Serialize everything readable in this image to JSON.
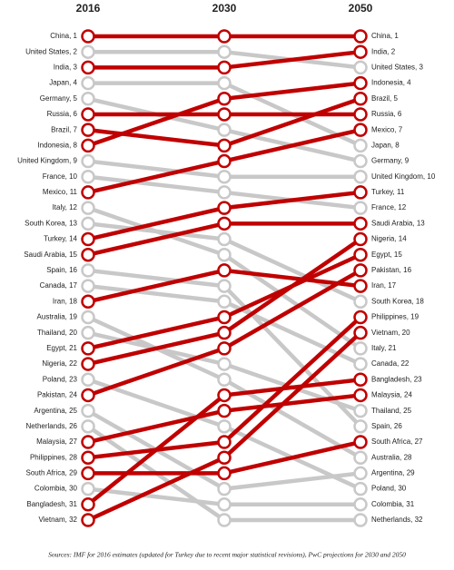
{
  "chart_data": {
    "type": "slope",
    "categories": [
      "2016",
      "2030",
      "2050"
    ],
    "ylim": [
      1,
      32
    ],
    "source": "Sources: IMF for 2016 estimates (updated for Turkey due to recent major statistical revisions), PwC projections for 2030 and 2050",
    "series": [
      {
        "color": "#c00000",
        "values": [
          1,
          1,
          1
        ],
        "value_labels": [
          "China, 1",
          null,
          "China, 1"
        ]
      },
      {
        "color": "#c8c8c8",
        "values": [
          2,
          2,
          3
        ],
        "value_labels": [
          "United States, 2",
          null,
          "United States, 3"
        ]
      },
      {
        "color": "#c00000",
        "values": [
          3,
          3,
          2
        ],
        "value_labels": [
          "India, 3",
          null,
          "India, 2"
        ]
      },
      {
        "color": "#c8c8c8",
        "values": [
          4,
          4,
          8
        ],
        "value_labels": [
          "Japan, 4",
          null,
          "Japan, 8"
        ]
      },
      {
        "color": "#c8c8c8",
        "values": [
          5,
          7,
          9
        ],
        "value_labels": [
          "Germany, 5",
          null,
          "Germany, 9"
        ]
      },
      {
        "color": "#c00000",
        "values": [
          6,
          6,
          6
        ],
        "value_labels": [
          "Russia, 6",
          null,
          "Russia, 6"
        ]
      },
      {
        "color": "#c00000",
        "values": [
          7,
          8,
          5
        ],
        "value_labels": [
          "Brazil, 7",
          null,
          "Brazil, 5"
        ]
      },
      {
        "color": "#c00000",
        "values": [
          8,
          5,
          4
        ],
        "value_labels": [
          "Indonesia, 8",
          null,
          "Indonesia, 4"
        ]
      },
      {
        "color": "#c8c8c8",
        "values": [
          9,
          10,
          10
        ],
        "value_labels": [
          "United Kingdom, 9",
          null,
          "United Kingdom, 10"
        ]
      },
      {
        "color": "#c8c8c8",
        "values": [
          10,
          11,
          12
        ],
        "value_labels": [
          "France, 10",
          null,
          "France, 12"
        ]
      },
      {
        "color": "#c00000",
        "values": [
          11,
          9,
          7
        ],
        "value_labels": [
          "Mexico, 11",
          null,
          "Mexico, 7"
        ]
      },
      {
        "color": "#c8c8c8",
        "values": [
          12,
          15,
          21
        ],
        "value_labels": [
          "Italy, 12",
          null,
          "Italy, 21"
        ]
      },
      {
        "color": "#c8c8c8",
        "values": [
          13,
          14,
          18
        ],
        "value_labels": [
          "South Korea, 13",
          null,
          "South Korea, 18"
        ]
      },
      {
        "color": "#c00000",
        "values": [
          14,
          12,
          11
        ],
        "value_labels": [
          "Turkey, 14",
          null,
          "Turkey, 11"
        ]
      },
      {
        "color": "#c00000",
        "values": [
          15,
          13,
          13
        ],
        "value_labels": [
          "Saudi Arabia, 15",
          null,
          "Saudi Arabia, 13"
        ]
      },
      {
        "color": "#c8c8c8",
        "values": [
          16,
          17,
          26
        ],
        "value_labels": [
          "Spain, 16",
          null,
          "Spain, 26"
        ]
      },
      {
        "color": "#c8c8c8",
        "values": [
          17,
          18,
          22
        ],
        "value_labels": [
          "Canada, 17",
          null,
          "Canada, 22"
        ]
      },
      {
        "color": "#c00000",
        "values": [
          18,
          16,
          17
        ],
        "value_labels": [
          "Iran, 18",
          null,
          "Iran, 17"
        ]
      },
      {
        "color": "#c8c8c8",
        "values": [
          19,
          23,
          28
        ],
        "value_labels": [
          "Australia, 19",
          null,
          "Australia, 28"
        ]
      },
      {
        "color": "#c8c8c8",
        "values": [
          20,
          22,
          25
        ],
        "value_labels": [
          "Thailand, 20",
          null,
          "Thailand, 25"
        ]
      },
      {
        "color": "#c00000",
        "values": [
          21,
          19,
          15
        ],
        "value_labels": [
          "Egypt, 21",
          null,
          "Egypt, 15"
        ]
      },
      {
        "color": "#c00000",
        "values": [
          22,
          20,
          14
        ],
        "value_labels": [
          "Nigeria, 22",
          null,
          "Nigeria, 14"
        ]
      },
      {
        "color": "#c8c8c8",
        "values": [
          23,
          26,
          30
        ],
        "value_labels": [
          "Poland, 23",
          null,
          "Poland, 30"
        ]
      },
      {
        "color": "#c00000",
        "values": [
          24,
          21,
          16
        ],
        "value_labels": [
          "Pakistan, 24",
          null,
          "Pakistan, 16"
        ]
      },
      {
        "color": "#c8c8c8",
        "values": [
          25,
          30,
          29
        ],
        "value_labels": [
          "Argentina, 25",
          null,
          "Argentina, 29"
        ]
      },
      {
        "color": "#c8c8c8",
        "values": [
          26,
          32,
          32
        ],
        "value_labels": [
          "Netherlands, 26",
          null,
          "Netherlands, 32"
        ]
      },
      {
        "color": "#c00000",
        "values": [
          27,
          25,
          24
        ],
        "value_labels": [
          "Malaysia, 27",
          null,
          "Malaysia, 24"
        ]
      },
      {
        "color": "#c00000",
        "values": [
          28,
          27,
          19
        ],
        "value_labels": [
          "Philippines, 28",
          null,
          "Philippines, 19"
        ]
      },
      {
        "color": "#c00000",
        "values": [
          29,
          29,
          27
        ],
        "value_labels": [
          "South Africa, 29",
          null,
          "South Africa, 27"
        ]
      },
      {
        "color": "#c8c8c8",
        "values": [
          30,
          31,
          31
        ],
        "value_labels": [
          "Colombia, 30",
          null,
          "Colombia, 31"
        ]
      },
      {
        "color": "#c00000",
        "values": [
          31,
          24,
          23
        ],
        "value_labels": [
          "Bangladesh, 31",
          null,
          "Bangladesh, 23"
        ]
      },
      {
        "color": "#c00000",
        "values": [
          32,
          28,
          20
        ],
        "value_labels": [
          "Vietnam, 32",
          null,
          "Vietnam, 20"
        ]
      }
    ]
  }
}
